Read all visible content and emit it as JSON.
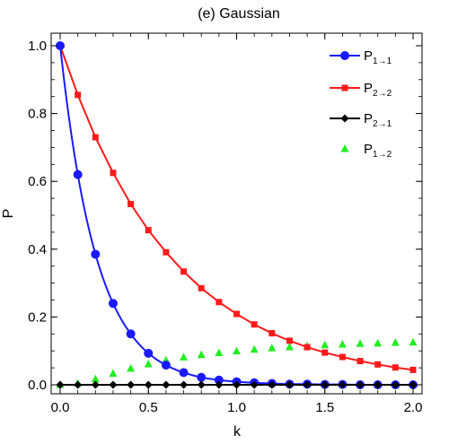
{
  "chart_data": {
    "type": "line",
    "title": "(e) Gaussian",
    "xlabel": "k",
    "ylabel": "P",
    "xlim": [
      0.0,
      2.0
    ],
    "ylim": [
      0.0,
      1.0
    ],
    "xticks": [
      "0.0",
      "0.5",
      "1.0",
      "1.5",
      "2.0"
    ],
    "yticks": [
      "0.0",
      "0.2",
      "0.4",
      "0.6",
      "0.8",
      "1.0"
    ],
    "grid": false,
    "legend_position": "top-right",
    "x": [
      0.0,
      0.1,
      0.2,
      0.3,
      0.4,
      0.5,
      0.6,
      0.7,
      0.8,
      0.9,
      1.0,
      1.1,
      1.2,
      1.3,
      1.4,
      1.5,
      1.6,
      1.7,
      1.8,
      1.9,
      2.0
    ],
    "series": [
      {
        "name": "P",
        "sub": "1→1",
        "color": "#1a1aff",
        "marker": "circle",
        "line": true,
        "values": [
          1.0,
          0.62,
          0.385,
          0.24,
          0.15,
          0.093,
          0.058,
          0.036,
          0.022,
          0.014,
          0.009,
          0.006,
          0.004,
          0.002,
          0.002,
          0.001,
          0.001,
          0.0,
          0.0,
          0.0,
          0.0
        ]
      },
      {
        "name": "P",
        "sub": "2→2",
        "color": "#ff1a1a",
        "marker": "square",
        "line": true,
        "values": [
          1.0,
          0.855,
          0.73,
          0.625,
          0.533,
          0.456,
          0.391,
          0.334,
          0.285,
          0.244,
          0.209,
          0.178,
          0.152,
          0.13,
          0.111,
          0.095,
          0.082,
          0.07,
          0.06,
          0.051,
          0.044
        ]
      },
      {
        "name": "P",
        "sub": "2→1",
        "color": "#000000",
        "marker": "diamond",
        "line": true,
        "values": [
          0.0,
          0.0,
          0.0,
          0.0,
          0.0,
          0.0,
          0.0,
          0.0,
          0.0,
          0.0,
          0.0,
          0.0,
          0.0,
          0.0,
          0.0,
          0.0,
          0.0,
          0.0,
          0.0,
          0.0,
          0.0
        ]
      },
      {
        "name": "P",
        "sub": "1→2",
        "color": "#22ee22",
        "marker": "triangle",
        "line": false,
        "values": [
          0.0,
          0.004,
          0.017,
          0.033,
          0.048,
          0.061,
          0.072,
          0.081,
          0.088,
          0.094,
          0.099,
          0.104,
          0.108,
          0.111,
          0.114,
          0.117,
          0.119,
          0.121,
          0.122,
          0.124,
          0.125
        ]
      }
    ]
  }
}
